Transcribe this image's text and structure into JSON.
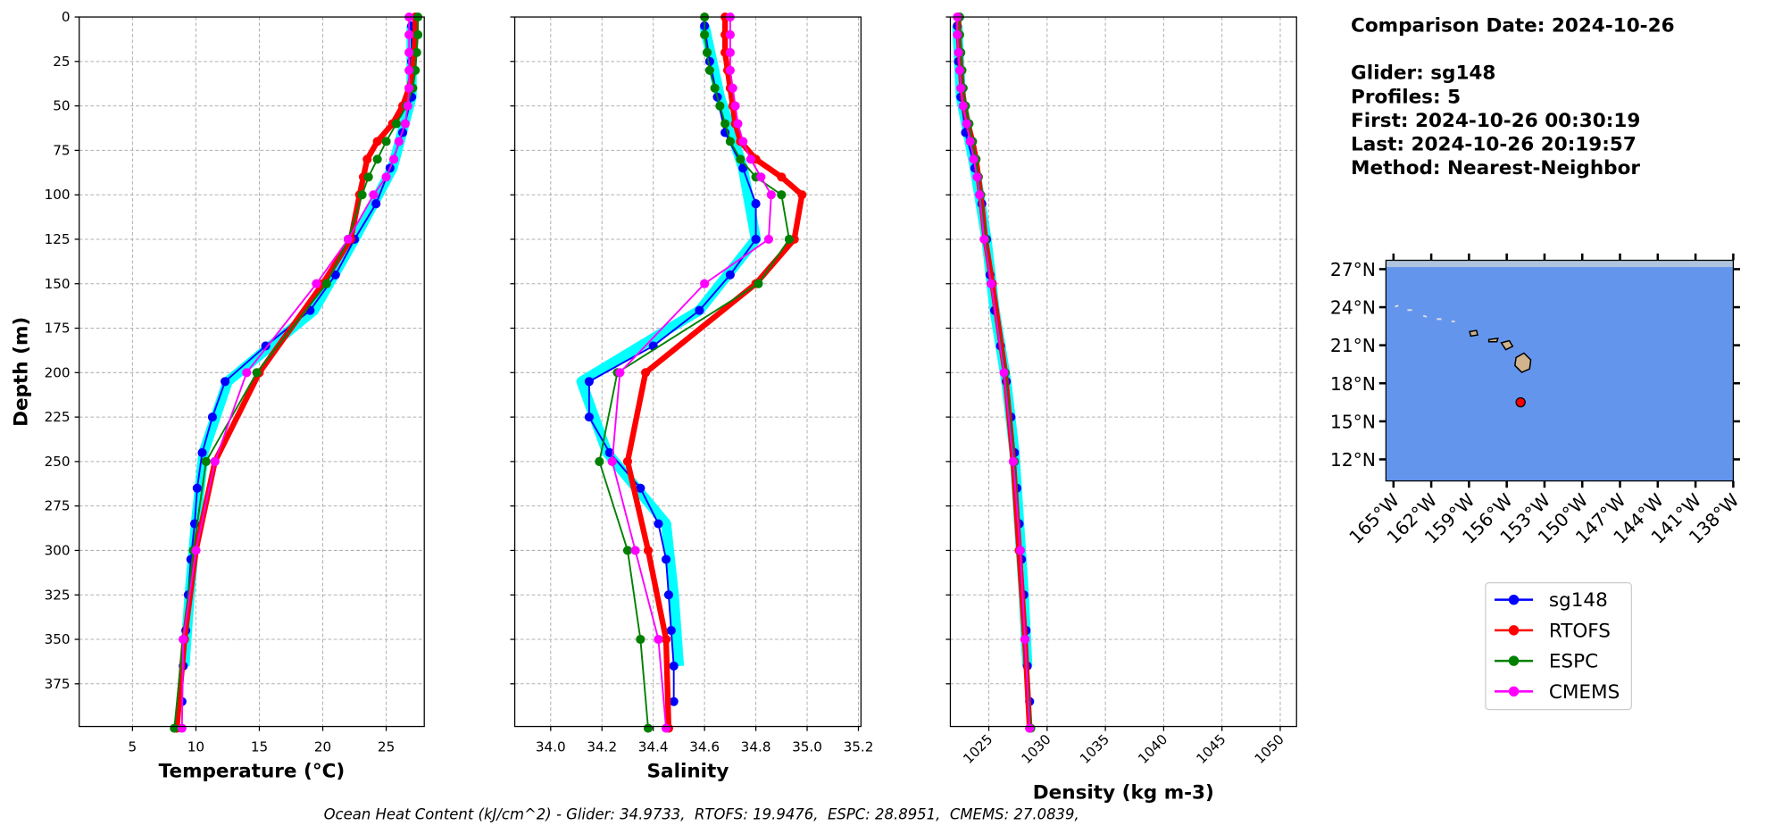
{
  "info": [
    "Comparison Date: 2024-10-26",
    "Glider: sg148",
    "Profiles: 5",
    "First: 2024-10-26 00:30:19",
    "Last: 2024-10-26 20:19:57",
    "Method: Nearest-Neighbor"
  ],
  "footer": "Ocean Heat Content (kJ/cm^2) - Glider: 34.9733,  RTOFS: 19.9476,  ESPC: 28.8951,  CMEMS: 27.0839,",
  "chart_data": [
    {
      "type": "line",
      "xlabel": "Temperature (°C)",
      "ylabel": "Depth (m)",
      "xlim": [
        0.8,
        28
      ],
      "xticks": [
        5,
        10,
        15,
        20,
        25
      ],
      "ylim": [
        0,
        399
      ],
      "y_inverted": true,
      "yticks": [
        0,
        25,
        50,
        75,
        100,
        125,
        150,
        175,
        200,
        225,
        250,
        275,
        300,
        325,
        350,
        375
      ],
      "show_ytick_labels": true,
      "grid": true,
      "xtick_rotation": 0,
      "series": [
        {
          "color": "#00ffff",
          "linewidth": 9,
          "marker_size": 0,
          "depth": [
            5,
            45,
            85,
            125,
            165,
            205,
            245,
            285,
            325,
            365
          ],
          "values": [
            27.0,
            27.0,
            25.5,
            22.5,
            19.3,
            12.5,
            10.6,
            10.0,
            9.5,
            9.1
          ]
        },
        {
          "name": "sg148",
          "color": "#0000ff",
          "linewidth": 1.5,
          "marker_size": 4,
          "depth": [
            5,
            25,
            45,
            65,
            85,
            105,
            125,
            145,
            165,
            185,
            205,
            225,
            245,
            265,
            285,
            305,
            325,
            345,
            365,
            385
          ],
          "values": [
            27.0,
            27.0,
            27.0,
            26.3,
            25.3,
            24.2,
            22.5,
            21.0,
            19.0,
            15.5,
            12.3,
            11.3,
            10.5,
            10.1,
            9.9,
            9.6,
            9.4,
            9.2,
            9.0,
            8.9
          ]
        },
        {
          "name": "RTOFS",
          "color": "#ff0000",
          "linewidth": 5,
          "marker_size": 4,
          "depth": [
            0,
            10,
            20,
            30,
            40,
            50,
            60,
            70,
            80,
            90,
            100,
            125,
            150,
            200,
            250,
            300,
            350,
            400
          ],
          "values": [
            27.3,
            27.3,
            27.2,
            27.1,
            26.8,
            26.3,
            25.5,
            24.3,
            23.5,
            23.2,
            22.9,
            22.2,
            20.0,
            15.0,
            11.5,
            10.0,
            9.1,
            8.5
          ]
        },
        {
          "name": "ESPC",
          "color": "#008000",
          "linewidth": 1.5,
          "marker_size": 4,
          "depth": [
            0,
            10,
            20,
            30,
            40,
            50,
            60,
            70,
            80,
            90,
            100,
            125,
            150,
            200,
            250,
            300,
            350,
            400
          ],
          "values": [
            27.5,
            27.5,
            27.4,
            27.3,
            27.1,
            26.6,
            25.8,
            25.0,
            24.3,
            23.6,
            23.1,
            22.0,
            20.3,
            14.8,
            10.8,
            9.8,
            9.0,
            8.3
          ]
        },
        {
          "name": "CMEMS",
          "color": "#ff00ff",
          "linewidth": 1.5,
          "marker_size": 4,
          "depth": [
            0,
            10,
            20,
            30,
            40,
            50,
            60,
            70,
            80,
            90,
            100,
            125,
            150,
            200,
            250,
            300,
            350,
            400
          ],
          "values": [
            26.8,
            26.8,
            26.8,
            26.8,
            26.8,
            26.7,
            26.5,
            26.0,
            25.6,
            25.0,
            24.0,
            22.0,
            19.5,
            14.0,
            11.5,
            10.0,
            9.0,
            8.9
          ]
        }
      ]
    },
    {
      "type": "line",
      "xlabel": "Salinity",
      "xlim": [
        33.86,
        35.21
      ],
      "xticks": [
        {
          "value": 34.0,
          "label": "34.0"
        },
        34.2,
        34.4,
        34.6,
        34.8,
        {
          "value": 35.0,
          "label": "35.0"
        },
        35.2
      ],
      "ylim": [
        0,
        399
      ],
      "y_inverted": true,
      "yticks": [
        0,
        25,
        50,
        75,
        100,
        125,
        150,
        175,
        200,
        225,
        250,
        275,
        300,
        325,
        350,
        375
      ],
      "show_ytick_labels": false,
      "grid": true,
      "xtick_rotation": 0,
      "series": [
        {
          "color": "#00ffff",
          "linewidth": 9,
          "marker_size": 0,
          "depth": [
            5,
            45,
            85,
            125,
            165,
            205,
            245,
            285,
            325,
            365
          ],
          "values": [
            34.6,
            34.66,
            34.75,
            34.8,
            34.58,
            34.12,
            34.22,
            34.45,
            34.48,
            34.5
          ]
        },
        {
          "name": "sg148",
          "color": "#0000ff",
          "linewidth": 1.5,
          "marker_size": 4,
          "depth": [
            5,
            25,
            45,
            65,
            85,
            105,
            125,
            145,
            165,
            185,
            205,
            225,
            245,
            265,
            285,
            305,
            325,
            345,
            365,
            385
          ],
          "values": [
            34.6,
            34.62,
            34.65,
            34.68,
            34.75,
            34.8,
            34.8,
            34.7,
            34.58,
            34.4,
            34.15,
            34.15,
            34.23,
            34.35,
            34.42,
            34.45,
            34.46,
            34.47,
            34.48,
            34.48
          ]
        },
        {
          "name": "RTOFS",
          "color": "#ff0000",
          "linewidth": 5,
          "marker_size": 4,
          "depth": [
            0,
            10,
            20,
            30,
            40,
            50,
            60,
            70,
            80,
            90,
            100,
            125,
            150,
            200,
            250,
            300,
            350,
            400
          ],
          "values": [
            34.68,
            34.68,
            34.68,
            34.69,
            34.7,
            34.71,
            34.72,
            34.74,
            34.8,
            34.9,
            34.98,
            34.95,
            34.8,
            34.37,
            34.3,
            34.38,
            34.45,
            34.46
          ]
        },
        {
          "name": "ESPC",
          "color": "#008000",
          "linewidth": 1.5,
          "marker_size": 4,
          "depth": [
            0,
            10,
            20,
            30,
            40,
            50,
            60,
            70,
            80,
            90,
            100,
            125,
            150,
            200,
            250,
            300,
            350,
            400
          ],
          "values": [
            34.6,
            34.6,
            34.61,
            34.62,
            34.64,
            34.66,
            34.68,
            34.7,
            34.74,
            34.8,
            34.9,
            34.93,
            34.81,
            34.26,
            34.19,
            34.3,
            34.35,
            34.38
          ]
        },
        {
          "name": "CMEMS",
          "color": "#ff00ff",
          "linewidth": 1.5,
          "marker_size": 4,
          "depth": [
            0,
            10,
            20,
            30,
            40,
            50,
            60,
            70,
            80,
            90,
            100,
            125,
            150,
            200,
            250,
            300,
            350,
            400
          ],
          "values": [
            34.7,
            34.7,
            34.7,
            34.7,
            34.71,
            34.72,
            34.73,
            34.75,
            34.78,
            34.82,
            34.86,
            34.85,
            34.6,
            34.27,
            34.24,
            34.33,
            34.42,
            34.45
          ]
        }
      ]
    },
    {
      "type": "line",
      "xlabel": "Density (kg m-3)",
      "xlim": [
        1021.7,
        1051.4
      ],
      "xticks": [
        1025,
        1030,
        1035,
        1040,
        1045,
        1050
      ],
      "ylim": [
        0,
        399
      ],
      "y_inverted": true,
      "yticks": [
        0,
        25,
        50,
        75,
        100,
        125,
        150,
        175,
        200,
        225,
        250,
        275,
        300,
        325,
        350,
        375
      ],
      "show_ytick_labels": false,
      "grid": true,
      "xtick_rotation": -45,
      "series": [
        {
          "color": "#00ffff",
          "linewidth": 9,
          "marker_size": 0,
          "depth": [
            5,
            45,
            85,
            125,
            165,
            205,
            245,
            285,
            325,
            365
          ],
          "values": [
            1022.3,
            1022.6,
            1023.8,
            1024.8,
            1025.5,
            1026.5,
            1027.2,
            1027.6,
            1028.0,
            1028.3
          ]
        },
        {
          "name": "sg148",
          "color": "#0000ff",
          "linewidth": 1.5,
          "marker_size": 4,
          "depth": [
            5,
            25,
            45,
            65,
            85,
            105,
            125,
            145,
            165,
            185,
            205,
            225,
            245,
            265,
            285,
            305,
            325,
            345,
            365,
            385
          ],
          "values": [
            1022.3,
            1022.4,
            1022.6,
            1023.0,
            1023.8,
            1024.4,
            1024.8,
            1025.1,
            1025.5,
            1026.0,
            1026.5,
            1026.9,
            1027.2,
            1027.4,
            1027.6,
            1027.8,
            1028.0,
            1028.2,
            1028.3,
            1028.5
          ]
        },
        {
          "name": "RTOFS",
          "color": "#ff0000",
          "linewidth": 5,
          "marker_size": 4,
          "depth": [
            0,
            10,
            20,
            30,
            40,
            50,
            60,
            70,
            80,
            90,
            100,
            125,
            150,
            200,
            250,
            300,
            350,
            400
          ],
          "values": [
            1022.4,
            1022.4,
            1022.5,
            1022.6,
            1022.7,
            1022.9,
            1023.2,
            1023.6,
            1023.9,
            1024.1,
            1024.3,
            1024.7,
            1025.3,
            1026.4,
            1027.1,
            1027.6,
            1028.1,
            1028.5
          ]
        },
        {
          "name": "ESPC",
          "color": "#008000",
          "linewidth": 1.5,
          "marker_size": 4,
          "depth": [
            0,
            10,
            20,
            30,
            40,
            50,
            60,
            70,
            80,
            90,
            100,
            125,
            150,
            200,
            250,
            300,
            350,
            400
          ],
          "values": [
            1022.5,
            1022.5,
            1022.6,
            1022.7,
            1022.8,
            1023.0,
            1023.3,
            1023.6,
            1023.9,
            1024.1,
            1024.3,
            1024.7,
            1025.2,
            1026.4,
            1027.2,
            1027.7,
            1028.1,
            1028.6
          ]
        },
        {
          "name": "CMEMS",
          "color": "#ff00ff",
          "linewidth": 1.5,
          "marker_size": 4,
          "depth": [
            0,
            10,
            20,
            30,
            40,
            50,
            60,
            70,
            80,
            90,
            100,
            125,
            150,
            200,
            250,
            300,
            350,
            400
          ],
          "values": [
            1022.3,
            1022.3,
            1022.4,
            1022.5,
            1022.6,
            1022.8,
            1023.1,
            1023.4,
            1023.7,
            1024.0,
            1024.2,
            1024.6,
            1025.2,
            1026.3,
            1027.1,
            1027.7,
            1028.1,
            1028.5
          ]
        }
      ]
    },
    {
      "type": "map",
      "ocean_color": "#6495ed",
      "xlim": [
        -165.6,
        -138
      ],
      "ylim": [
        10.3,
        27.7
      ],
      "xticks": [
        {
          "value": -165,
          "label": "165°W"
        },
        {
          "value": -162,
          "label": "162°W"
        },
        {
          "value": -159,
          "label": "159°W"
        },
        {
          "value": -156,
          "label": "156°W"
        },
        {
          "value": -153,
          "label": "153°W"
        },
        {
          "value": -150,
          "label": "150°W"
        },
        {
          "value": -147,
          "label": "147°W"
        },
        {
          "value": -144,
          "label": "144°W"
        },
        {
          "value": -141,
          "label": "141°W"
        },
        {
          "value": -138,
          "label": "138°W"
        }
      ],
      "yticks": [
        {
          "value": 12,
          "label": "12°N"
        },
        {
          "value": 15,
          "label": "15°N"
        },
        {
          "value": 18,
          "label": "18°N"
        },
        {
          "value": 21,
          "label": "21°N"
        },
        {
          "value": 24,
          "label": "24°N"
        },
        {
          "value": 27,
          "label": "27°N"
        }
      ],
      "points": {
        "color": "#ff0000",
        "lon": [
          -154.9
        ],
        "lat": [
          16.5
        ]
      }
    }
  ]
}
